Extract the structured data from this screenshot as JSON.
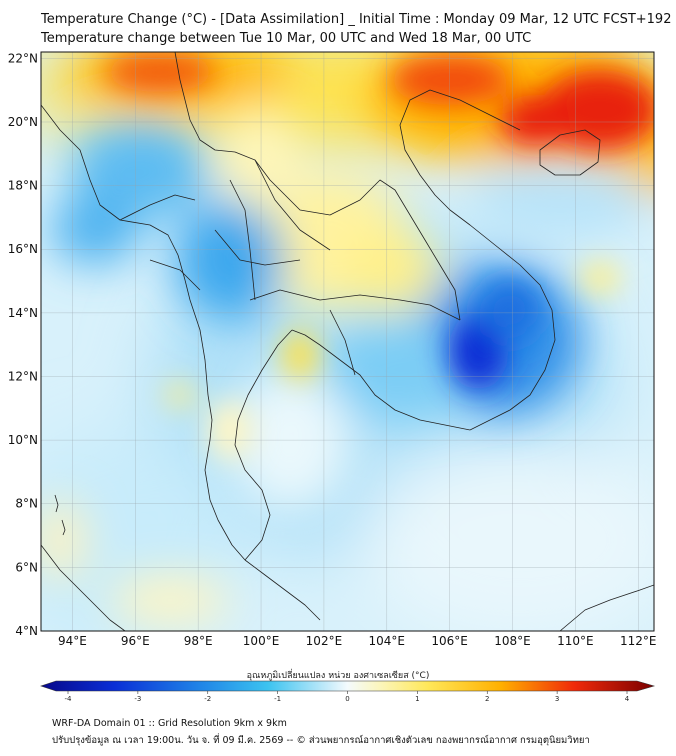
{
  "header": {
    "title_line1": "Temperature Change (°C) - [Data Assimilation] _ Initial Time : Monday 09 Mar, 12 UTC FCST+192",
    "title_line2": "Temperature change between Tue 10 Mar, 00 UTC and Wed 18 Mar, 00 UTC"
  },
  "map": {
    "lon_range": [
      93,
      112.5
    ],
    "lat_range": [
      4,
      22.2
    ],
    "lat_ticks": [
      {
        "value": 22,
        "label": "22°N"
      },
      {
        "value": 20,
        "label": "20°N"
      },
      {
        "value": 18,
        "label": "18°N"
      },
      {
        "value": 16,
        "label": "16°N"
      },
      {
        "value": 14,
        "label": "14°N"
      },
      {
        "value": 12,
        "label": "12°N"
      },
      {
        "value": 10,
        "label": "10°N"
      },
      {
        "value": 8,
        "label": "8°N"
      },
      {
        "value": 6,
        "label": "6°N"
      },
      {
        "value": 4,
        "label": "4°N"
      }
    ],
    "lon_ticks": [
      {
        "value": 94,
        "label": "94°E"
      },
      {
        "value": 96,
        "label": "96°E"
      },
      {
        "value": 98,
        "label": "98°E"
      },
      {
        "value": 100,
        "label": "100°E"
      },
      {
        "value": 102,
        "label": "102°E"
      },
      {
        "value": 104,
        "label": "104°E"
      },
      {
        "value": 106,
        "label": "106°E"
      },
      {
        "value": 108,
        "label": "108°E"
      },
      {
        "value": 110,
        "label": "110°E"
      },
      {
        "value": 112,
        "label": "112°E"
      }
    ],
    "colors": {
      "strong_cool": "#0a2fd6",
      "cool": "#3aa6ee",
      "light_cool": "#a9def8",
      "neutral": "#eef9fd",
      "light_warm": "#fff6b0",
      "warm": "#ffd23a",
      "hot": "#ff8a00",
      "very_hot": "#e81b0c",
      "border": "#222222"
    }
  },
  "colorbar": {
    "title": "อุณหภูมิเปลี่ยนแปลง หน่วย องศาเซลเซียส (°C)",
    "ticks": [
      "-4",
      "-3",
      "-2",
      "-1",
      "0",
      "1",
      "2",
      "3",
      "4"
    ],
    "min": -4,
    "max": 4
  },
  "footer": {
    "line1": "WRF-DA Domain 01 :: Grid Resolution 9km x 9km",
    "line2": "ปรับปรุงข้อมูล ณ เวลา 19:00น. วัน จ. ที่ 09 มี.ค. 2569 -- © ส่วนพยากรณ์อากาศเชิงตัวเลข กองพยากรณ์อากาศ กรมอุตุนิยมวิทยา"
  }
}
